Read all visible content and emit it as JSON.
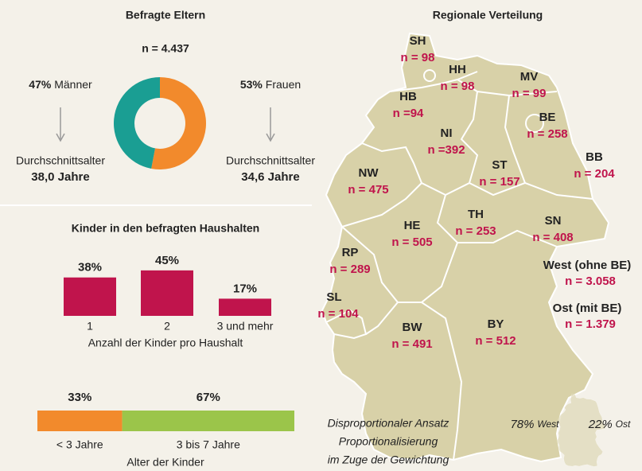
{
  "chart_data": [
    {
      "type": "pie",
      "title": "Befragte Eltern",
      "subtitle": "n = 4.437",
      "categories": [
        "Männer",
        "Frauen"
      ],
      "values": [
        47,
        53
      ],
      "value_labels": [
        "47%",
        "53%"
      ],
      "colors": [
        "#1a9e93",
        "#f28a2c"
      ],
      "annotations": {
        "label": "Durchschnittsalter",
        "ages": [
          "38,0 Jahre",
          "34,6 Jahre"
        ]
      }
    },
    {
      "type": "bar",
      "title": "Kinder in den befragten Haushalten",
      "categories": [
        "1",
        "2",
        "3 und mehr"
      ],
      "values": [
        38,
        45,
        17
      ],
      "value_labels": [
        "38%",
        "45%",
        "17%"
      ],
      "color": "#c0144c",
      "x_label": "Anzahl der Kinder pro Haushalt"
    },
    {
      "type": "stacked_bar",
      "categories": [
        "< 3 Jahre",
        "3 bis 7 Jahre"
      ],
      "values": [
        33,
        67
      ],
      "value_labels": [
        "33%",
        "67%"
      ],
      "colors": [
        "#f28a2c",
        "#9bc54a"
      ],
      "x_label": "Alter der Kinder"
    }
  ],
  "map": {
    "title": "Regionale Verteilung",
    "states": [
      {
        "code": "SH",
        "label": "n = 98"
      },
      {
        "code": "HH",
        "label": "n = 98"
      },
      {
        "code": "MV",
        "label": "n = 99"
      },
      {
        "code": "HB",
        "label": "n =94"
      },
      {
        "code": "BE",
        "label": "n = 258"
      },
      {
        "code": "NI",
        "label": "n =392"
      },
      {
        "code": "BB",
        "label": "n = 204"
      },
      {
        "code": "ST",
        "label": "n = 157"
      },
      {
        "code": "NW",
        "label": "n = 475"
      },
      {
        "code": "TH",
        "label": "n = 253"
      },
      {
        "code": "SN",
        "label": "n = 408"
      },
      {
        "code": "HE",
        "label": "n = 505"
      },
      {
        "code": "RP",
        "label": "n = 289"
      },
      {
        "code": "SL",
        "label": "n = 104"
      },
      {
        "code": "BW",
        "label": "n = 491"
      },
      {
        "code": "BY",
        "label": "n = 512"
      }
    ],
    "regions": [
      {
        "name": "West (ohne BE)",
        "label": "n = 3.058"
      },
      {
        "name": "Ost (mit BE)",
        "label": "n = 1.379"
      }
    ],
    "note": [
      "Disproportionaler Ansatz",
      "Proportionalisierung",
      "im Zuge der Gewichtung"
    ],
    "weights": [
      {
        "value": "78%",
        "name": "West"
      },
      {
        "value": "22%",
        "name": "Ost"
      }
    ]
  }
}
